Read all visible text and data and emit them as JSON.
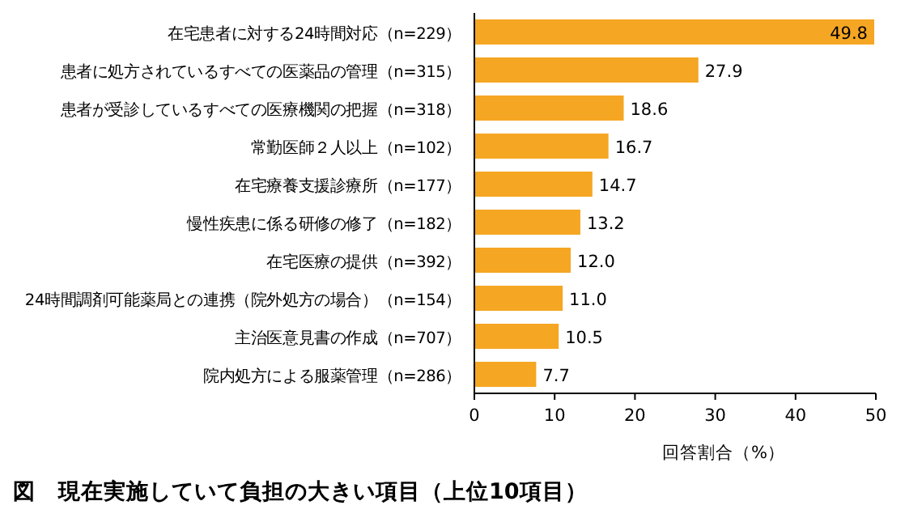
{
  "chart_data": {
    "type": "bar",
    "orientation": "horizontal",
    "title": "図　現在実施していて負担の大きい項目（上位10項目）",
    "xlabel": "回答割合（%）",
    "categories": [
      "在宅患者に対する24時間対応（n=229）",
      "患者に処方されているすべての医薬品の管理（n=315）",
      "患者が受診しているすべての医療機関の把握（n=318）",
      "常勤医師２人以上（n=102）",
      "在宅療養支援診療所（n=177）",
      "慢性疾患に係る研修の修了（n=182）",
      "在宅医療の提供（n=392）",
      "24時間調剤可能薬局との連携（院外処方の場合）（n=154）",
      "主治医意見書の作成（n=707）",
      "院内処方による服薬管理（n=286）"
    ],
    "values": [
      49.8,
      27.9,
      18.6,
      16.7,
      14.7,
      13.2,
      12.0,
      11.0,
      10.5,
      7.7
    ],
    "value_labels": [
      "49.8",
      "27.9",
      "18.6",
      "16.7",
      "14.7",
      "13.2",
      "12.0",
      "11.0",
      "10.5",
      "7.7"
    ],
    "color": "#f5a623",
    "xlim": [
      0,
      50
    ],
    "xticks": [
      0,
      10,
      20,
      30,
      40,
      50
    ]
  }
}
